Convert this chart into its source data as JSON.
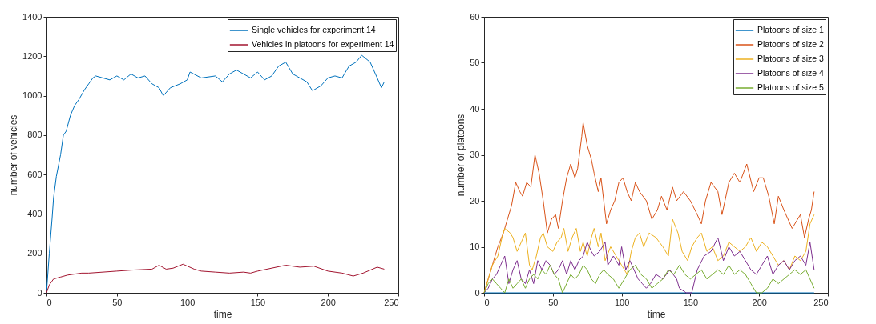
{
  "chart_data": [
    {
      "type": "line",
      "xlabel": "time",
      "ylabel": "number of vehicles",
      "xlim": [
        0,
        250
      ],
      "ylim": [
        0,
        1400
      ],
      "xticks": [
        0,
        50,
        100,
        150,
        200,
        250
      ],
      "yticks": [
        0,
        200,
        400,
        600,
        800,
        1000,
        1200,
        1400
      ],
      "legend": "top right",
      "series": [
        {
          "name": "Single vehicles for experiment 14",
          "color": "#0072bd",
          "x": [
            0,
            2,
            4,
            5,
            7,
            10,
            12,
            14,
            17,
            20,
            23,
            27,
            30,
            33,
            35,
            40,
            45,
            50,
            55,
            60,
            65,
            70,
            75,
            80,
            83,
            88,
            95,
            100,
            102,
            110,
            120,
            125,
            130,
            135,
            140,
            145,
            150,
            155,
            160,
            165,
            170,
            175,
            180,
            185,
            189,
            195,
            200,
            205,
            210,
            215,
            220,
            224,
            230,
            235,
            238,
            240
          ],
          "values": [
            0,
            200,
            380,
            480,
            590,
            700,
            800,
            820,
            900,
            950,
            980,
            1030,
            1060,
            1090,
            1100,
            1090,
            1080,
            1100,
            1080,
            1110,
            1090,
            1100,
            1060,
            1040,
            1000,
            1040,
            1060,
            1080,
            1120,
            1090,
            1100,
            1070,
            1110,
            1130,
            1110,
            1090,
            1120,
            1080,
            1100,
            1150,
            1170,
            1110,
            1090,
            1070,
            1025,
            1050,
            1090,
            1100,
            1090,
            1150,
            1170,
            1205,
            1170,
            1090,
            1040,
            1070
          ]
        },
        {
          "name": "Vehicles in platoons for experiment 14",
          "color": "#a2142f",
          "x": [
            0,
            2,
            5,
            10,
            15,
            20,
            25,
            30,
            40,
            50,
            60,
            75,
            80,
            85,
            90,
            97,
            105,
            110,
            120,
            130,
            140,
            145,
            150,
            160,
            170,
            180,
            190,
            200,
            210,
            218,
            225,
            230,
            235,
            240
          ],
          "values": [
            0,
            40,
            70,
            80,
            90,
            95,
            100,
            100,
            105,
            110,
            115,
            120,
            140,
            120,
            125,
            145,
            120,
            110,
            105,
            100,
            105,
            100,
            110,
            125,
            140,
            130,
            135,
            110,
            100,
            85,
            100,
            115,
            130,
            120
          ]
        }
      ]
    },
    {
      "type": "line",
      "xlabel": "time",
      "ylabel": "number of platoons",
      "xlim": [
        0,
        250
      ],
      "ylim": [
        0,
        60
      ],
      "xticks": [
        0,
        50,
        100,
        150,
        200,
        250
      ],
      "yticks": [
        0,
        10,
        20,
        30,
        40,
        50,
        60
      ],
      "legend": "top right",
      "series": [
        {
          "name": "Platoons of size 1",
          "color": "#0072bd",
          "x": [
            0,
            240
          ],
          "values": [
            0,
            0
          ]
        },
        {
          "name": "Platoons of size 2",
          "color": "#d95319",
          "x": [
            0,
            3,
            6,
            10,
            14,
            17,
            20,
            23,
            26,
            28,
            31,
            34,
            37,
            40,
            43,
            46,
            49,
            52,
            54,
            57,
            60,
            63,
            66,
            68,
            71,
            72,
            75,
            78,
            80,
            83,
            85,
            87,
            89,
            92,
            95,
            98,
            101,
            104,
            107,
            110,
            113,
            118,
            122,
            126,
            129,
            133,
            137,
            140,
            145,
            150,
            155,
            158,
            161,
            165,
            170,
            173,
            178,
            182,
            186,
            191,
            196,
            200,
            203,
            207,
            211,
            214,
            218,
            224,
            230,
            233,
            236,
            238,
            240
          ],
          "values": [
            0,
            3,
            6,
            10,
            13,
            16,
            19,
            24,
            22,
            21,
            24,
            23,
            30,
            26,
            20,
            13,
            16,
            17,
            14,
            20,
            25,
            28,
            25,
            27,
            34,
            37,
            32,
            29,
            26,
            22,
            25,
            20,
            15,
            18,
            20,
            24,
            25,
            22,
            20,
            24,
            22,
            20,
            16,
            18,
            21,
            18,
            23,
            20,
            22,
            20,
            17,
            15,
            20,
            24,
            22,
            17,
            24,
            26,
            24,
            28,
            22,
            25,
            25,
            21,
            15,
            21,
            18,
            14,
            17,
            12,
            16,
            18,
            22
          ]
        },
        {
          "name": "Platoons of size 3",
          "color": "#edb120",
          "x": [
            0,
            3,
            6,
            10,
            13,
            15,
            19,
            21,
            24,
            27,
            30,
            33,
            35,
            38,
            41,
            43,
            46,
            50,
            53,
            56,
            58,
            61,
            64,
            67,
            70,
            72,
            75,
            78,
            80,
            83,
            85,
            88,
            92,
            96,
            100,
            104,
            107,
            110,
            113,
            116,
            120,
            125,
            130,
            134,
            137,
            141,
            144,
            148,
            151,
            155,
            158,
            162,
            166,
            170,
            174,
            178,
            182,
            186,
            190,
            194,
            198,
            202,
            206,
            210,
            214,
            218,
            222,
            226,
            230,
            234,
            237,
            240
          ],
          "values": [
            0,
            3,
            6,
            8,
            12,
            14,
            13,
            12,
            9,
            11,
            13,
            6,
            5,
            8,
            12,
            13,
            10,
            9,
            11,
            12,
            14,
            9,
            12,
            14,
            9,
            11,
            8,
            12,
            14,
            10,
            13,
            7,
            10,
            8,
            6,
            4,
            9,
            12,
            13,
            10,
            13,
            12,
            10,
            8,
            16,
            13,
            9,
            7,
            10,
            12,
            13,
            9,
            10,
            7,
            8,
            11,
            10,
            9,
            10,
            12,
            9,
            11,
            10,
            8,
            6,
            7,
            5,
            8,
            7,
            9,
            15,
            17
          ]
        },
        {
          "name": "Platoons of size 4",
          "color": "#7e2f8e",
          "x": [
            0,
            3,
            6,
            9,
            12,
            15,
            18,
            21,
            24,
            27,
            30,
            33,
            36,
            39,
            42,
            45,
            48,
            51,
            54,
            57,
            60,
            63,
            66,
            69,
            72,
            75,
            78,
            80,
            84,
            88,
            90,
            94,
            98,
            100,
            103,
            106,
            109,
            112,
            115,
            118,
            121,
            125,
            130,
            135,
            140,
            142,
            147,
            151,
            155,
            160,
            165,
            170,
            174,
            178,
            182,
            186,
            190,
            194,
            198,
            202,
            206,
            210,
            214,
            218,
            222,
            226,
            230,
            234,
            237,
            240
          ],
          "values": [
            0,
            1,
            3,
            4,
            6,
            8,
            2,
            5,
            7,
            3,
            2,
            5,
            2,
            7,
            5,
            7,
            6,
            4,
            5,
            7,
            4,
            7,
            5,
            7,
            8,
            11,
            9,
            8,
            9,
            11,
            6,
            8,
            6,
            10,
            5,
            7,
            5,
            3,
            2,
            1,
            2,
            4,
            3,
            5,
            3,
            1,
            0,
            0,
            5,
            8,
            9,
            12,
            7,
            10,
            8,
            9,
            7,
            5,
            4,
            6,
            8,
            4,
            6,
            7,
            5,
            7,
            8,
            6,
            11,
            5
          ]
        },
        {
          "name": "Platoons of size 5",
          "color": "#77ac30",
          "x": [
            0,
            3,
            6,
            9,
            12,
            15,
            18,
            21,
            24,
            27,
            30,
            33,
            36,
            39,
            42,
            45,
            48,
            51,
            54,
            57,
            60,
            63,
            66,
            69,
            72,
            75,
            78,
            81,
            84,
            87,
            90,
            94,
            98,
            102,
            106,
            110,
            114,
            118,
            122,
            126,
            130,
            134,
            138,
            142,
            146,
            150,
            154,
            158,
            162,
            166,
            170,
            174,
            178,
            182,
            186,
            190,
            194,
            198,
            202,
            206,
            210,
            214,
            218,
            222,
            226,
            230,
            234,
            237,
            240
          ],
          "values": [
            0,
            2,
            3,
            2,
            1,
            0,
            3,
            1,
            2,
            3,
            1,
            3,
            4,
            3,
            5,
            4,
            6,
            4,
            3,
            0,
            2,
            4,
            3,
            4,
            6,
            5,
            3,
            2,
            4,
            5,
            4,
            3,
            1,
            3,
            5,
            6,
            4,
            3,
            1,
            2,
            3,
            5,
            4,
            6,
            4,
            3,
            4,
            5,
            3,
            4,
            5,
            4,
            6,
            4,
            5,
            4,
            2,
            0,
            0,
            1,
            3,
            2,
            3,
            4,
            5,
            4,
            5,
            3,
            1
          ]
        }
      ]
    }
  ]
}
